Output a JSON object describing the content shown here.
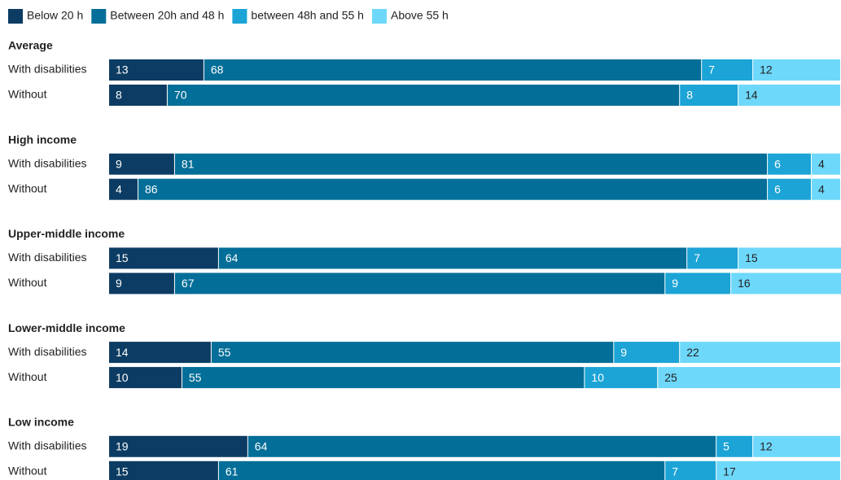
{
  "chart_data": {
    "type": "bar",
    "orientation": "horizontal",
    "stacked": true,
    "groups": [
      "Average",
      "High income",
      "Upper-middle income",
      "Lower-middle income",
      "Low income"
    ],
    "categories": [
      "With disabilities",
      "Without",
      "With disabilities",
      "Without",
      "With disabilities",
      "Without",
      "With disabilities",
      "Without",
      "With disabilities",
      "Without"
    ],
    "xlim": [
      0,
      100
    ],
    "legend": "top-left",
    "series": [
      {
        "name": "Below 20 h",
        "color": "#0c3c63",
        "values": [
          13,
          8,
          9,
          4,
          15,
          9,
          14,
          10,
          19,
          15
        ]
      },
      {
        "name": "Between 20h and 48 h",
        "color": "#036e98",
        "values": [
          68,
          70,
          81,
          86,
          64,
          67,
          55,
          55,
          64,
          61
        ]
      },
      {
        "name": "between 48h and 55 h",
        "color": "#1ca4d6",
        "values": [
          7,
          8,
          6,
          6,
          7,
          9,
          9,
          10,
          5,
          7
        ]
      },
      {
        "name": "Above 55 h",
        "color": "#6ed8fb",
        "values": [
          12,
          14,
          4,
          4,
          15,
          16,
          22,
          25,
          12,
          17
        ]
      }
    ]
  }
}
